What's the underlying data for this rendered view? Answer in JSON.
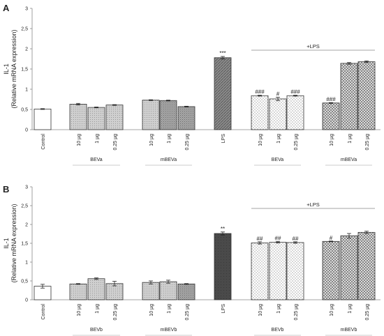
{
  "chart_data": [
    {
      "panel_label": "A",
      "type": "bar",
      "ylabel": [
        "IL-1",
        "(Relative mRNA expression)"
      ],
      "ylim": [
        0,
        3
      ],
      "yticks": [
        "0",
        "0,5",
        "1",
        "1,5",
        "2",
        "2,5",
        "3"
      ],
      "grid": false,
      "lps_bracket_label": "+LPS",
      "bars": [
        {
          "label": "Control",
          "value": 0.51,
          "error": 0.01,
          "pattern": "white",
          "annotation": ""
        },
        {
          "label": "10 µg",
          "value": 0.63,
          "error": 0.02,
          "pattern": "light",
          "annotation": ""
        },
        {
          "label": "1 µg",
          "value": 0.55,
          "error": 0.01,
          "pattern": "light",
          "annotation": ""
        },
        {
          "label": "0.25 µg",
          "value": 0.61,
          "error": 0.01,
          "pattern": "light",
          "annotation": ""
        },
        {
          "label": "10 µg",
          "value": 0.73,
          "error": 0.01,
          "pattern": "light",
          "annotation": ""
        },
        {
          "label": "1 µg",
          "value": 0.72,
          "error": 0.01,
          "pattern": "mid",
          "annotation": ""
        },
        {
          "label": "0.25 µg",
          "value": 0.57,
          "error": 0.01,
          "pattern": "mid",
          "annotation": ""
        },
        {
          "label": "LPS",
          "value": 1.78,
          "error": 0.03,
          "pattern": "diagonal",
          "annotation": "***"
        },
        {
          "label": "10 µg",
          "value": 0.84,
          "error": 0.01,
          "pattern": "dots",
          "annotation": "###"
        },
        {
          "label": "1 µg",
          "value": 0.76,
          "error": 0.04,
          "pattern": "dots",
          "annotation": "#"
        },
        {
          "label": "0.25 µg",
          "value": 0.84,
          "error": 0.01,
          "pattern": "dots",
          "annotation": "###"
        },
        {
          "label": "10 µg",
          "value": 0.66,
          "error": 0.01,
          "pattern": "cross",
          "annotation": "###"
        },
        {
          "label": "1 µg",
          "value": 1.64,
          "error": 0.02,
          "pattern": "cross",
          "annotation": ""
        },
        {
          "label": "0.25 µg",
          "value": 1.68,
          "error": 0.02,
          "pattern": "cross",
          "annotation": ""
        }
      ],
      "groups": [
        {
          "label": "BEVa",
          "bars": [
            1,
            3
          ]
        },
        {
          "label": "mBEVa",
          "bars": [
            4,
            6
          ]
        },
        {
          "label": "BEVa",
          "bars": [
            8,
            10
          ]
        },
        {
          "label": "mBEVa",
          "bars": [
            11,
            13
          ]
        }
      ]
    },
    {
      "panel_label": "B",
      "type": "bar",
      "ylabel": [
        "IL-1",
        "(Relative mRNA expression)"
      ],
      "ylim": [
        0,
        3
      ],
      "yticks": [
        "0",
        "0,5",
        "1",
        "1,5",
        "2",
        "2,5",
        "3"
      ],
      "grid": false,
      "lps_bracket_label": "+LPS",
      "bars": [
        {
          "label": "Control",
          "value": 0.36,
          "error": 0.05,
          "pattern": "white",
          "annotation": ""
        },
        {
          "label": "10 µg",
          "value": 0.42,
          "error": 0.01,
          "pattern": "light",
          "annotation": ""
        },
        {
          "label": "1 µg",
          "value": 0.56,
          "error": 0.02,
          "pattern": "light",
          "annotation": ""
        },
        {
          "label": "0.25 µg",
          "value": 0.43,
          "error": 0.06,
          "pattern": "light",
          "annotation": ""
        },
        {
          "label": "10 µg",
          "value": 0.46,
          "error": 0.04,
          "pattern": "light",
          "annotation": ""
        },
        {
          "label": "1 µg",
          "value": 0.48,
          "error": 0.04,
          "pattern": "light",
          "annotation": ""
        },
        {
          "label": "0.25 µg",
          "value": 0.42,
          "error": 0.01,
          "pattern": "mid",
          "annotation": ""
        },
        {
          "label": "LPS",
          "value": 1.76,
          "error": 0.04,
          "pattern": "dark",
          "annotation": "**"
        },
        {
          "label": "10 µg",
          "value": 1.51,
          "error": 0.03,
          "pattern": "dots",
          "annotation": "##"
        },
        {
          "label": "1 µg",
          "value": 1.53,
          "error": 0.02,
          "pattern": "dots",
          "annotation": "##"
        },
        {
          "label": "0.25 µg",
          "value": 1.52,
          "error": 0.02,
          "pattern": "dots",
          "annotation": "##"
        },
        {
          "label": "10 µg",
          "value": 1.55,
          "error": 0.01,
          "pattern": "cross",
          "annotation": "#"
        },
        {
          "label": "1 µg",
          "value": 1.7,
          "error": 0.06,
          "pattern": "cross",
          "annotation": ""
        },
        {
          "label": "0.25 µg",
          "value": 1.79,
          "error": 0.03,
          "pattern": "cross",
          "annotation": ""
        }
      ],
      "groups": [
        {
          "label": "BEVb",
          "bars": [
            1,
            3
          ]
        },
        {
          "label": "mBEVb",
          "bars": [
            4,
            6
          ]
        },
        {
          "label": "BEVb",
          "bars": [
            8,
            10
          ]
        },
        {
          "label": "mBEVb",
          "bars": [
            11,
            13
          ]
        }
      ]
    }
  ]
}
